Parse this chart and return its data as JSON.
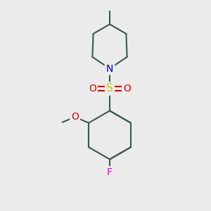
{
  "bg_color": "#ebebeb",
  "bond_color": "#3a5a4a",
  "bond_width": 1.5,
  "atom_colors": {
    "N": "#0000cc",
    "O": "#dd0000",
    "S": "#cccc00",
    "F": "#dd00dd",
    "C": "#3a5a4a"
  },
  "font_size": 10,
  "fig_size": [
    3.0,
    3.0
  ],
  "dpi": 100
}
